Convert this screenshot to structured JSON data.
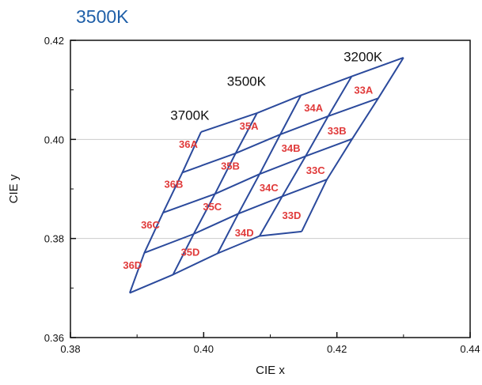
{
  "chart_data": {
    "type": "diagram",
    "title": "3500K",
    "xlabel": "CIE x",
    "ylabel": "CIE y",
    "xlim": [
      0.38,
      0.44
    ],
    "ylim": [
      0.36,
      0.42
    ],
    "x_ticks": [
      0.38,
      0.4,
      0.42,
      0.44
    ],
    "x_tick_labels": [
      "0.38",
      "0.40",
      "0.42",
      "0.44"
    ],
    "y_ticks": [
      0.36,
      0.38,
      0.4,
      0.42
    ],
    "y_tick_labels": [
      "0.36",
      "0.38",
      "0.40",
      "0.42"
    ],
    "grid": "horizontal",
    "colors": {
      "title": "#1f5fa8",
      "lines": "#2b4a9c",
      "bins": "#e03a3a",
      "grid": "#cccccc"
    },
    "cct_labels": [
      {
        "text": "3700K",
        "x": 0.395,
        "y": 0.404
      },
      {
        "text": "3500K",
        "x": 0.4035,
        "y": 0.4108
      },
      {
        "text": "3200K",
        "x": 0.421,
        "y": 0.4158
      }
    ],
    "grid_nodes": [
      [
        [
          0.3996,
          0.4015
        ],
        [
          0.408,
          0.4053
        ],
        [
          0.4146,
          0.4089
        ],
        [
          0.4222,
          0.4127
        ],
        [
          0.43,
          0.4165
        ]
      ],
      [
        [
          0.3968,
          0.3933
        ],
        [
          0.4048,
          0.3972
        ],
        [
          0.4115,
          0.401
        ],
        [
          0.4187,
          0.4047
        ],
        [
          0.4262,
          0.4083
        ]
      ],
      [
        [
          0.3939,
          0.3852
        ],
        [
          0.4017,
          0.389
        ],
        [
          0.4084,
          0.393
        ],
        [
          0.4153,
          0.3966
        ],
        [
          0.4223,
          0.4001
        ]
      ],
      [
        [
          0.3911,
          0.3771
        ],
        [
          0.3985,
          0.3809
        ],
        [
          0.4052,
          0.385
        ],
        [
          0.4118,
          0.3885
        ],
        [
          0.4185,
          0.3919
        ]
      ],
      [
        [
          0.3889,
          0.369
        ],
        [
          0.3954,
          0.3727
        ],
        [
          0.4021,
          0.377
        ],
        [
          0.4084,
          0.3805
        ],
        [
          0.4147,
          0.3814
        ]
      ]
    ],
    "bins": [
      {
        "name": "36A",
        "x": 0.3977,
        "y": 0.3991
      },
      {
        "name": "35A",
        "x": 0.4068,
        "y": 0.4028
      },
      {
        "name": "34A",
        "x": 0.4165,
        "y": 0.4064
      },
      {
        "name": "33A",
        "x": 0.424,
        "y": 0.41
      },
      {
        "name": "36B",
        "x": 0.3955,
        "y": 0.391
      },
      {
        "name": "35B",
        "x": 0.404,
        "y": 0.3947
      },
      {
        "name": "34B",
        "x": 0.4131,
        "y": 0.3983
      },
      {
        "name": "33B",
        "x": 0.42,
        "y": 0.4018
      },
      {
        "name": "36C",
        "x": 0.392,
        "y": 0.3828
      },
      {
        "name": "35C",
        "x": 0.4013,
        "y": 0.3865
      },
      {
        "name": "34C",
        "x": 0.4098,
        "y": 0.3903
      },
      {
        "name": "33C",
        "x": 0.4168,
        "y": 0.3938
      },
      {
        "name": "36D",
        "x": 0.3893,
        "y": 0.3747
      },
      {
        "name": "35D",
        "x": 0.398,
        "y": 0.3773
      },
      {
        "name": "34D",
        "x": 0.4061,
        "y": 0.3812
      },
      {
        "name": "33D",
        "x": 0.4132,
        "y": 0.3847
      }
    ]
  }
}
